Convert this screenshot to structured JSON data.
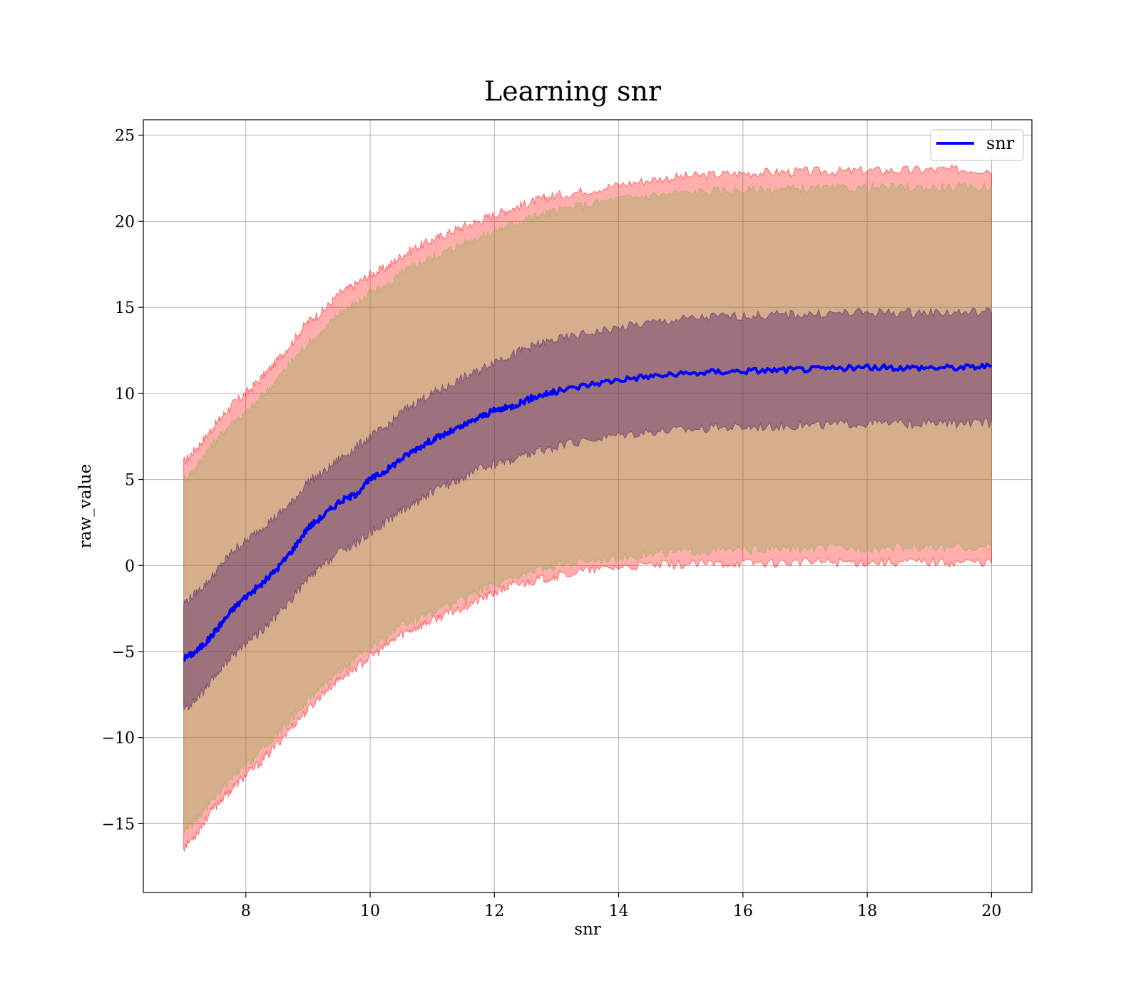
{
  "chart_data": {
    "type": "line",
    "title": "Learning snr",
    "xlabel": "snr",
    "ylabel": "raw_value",
    "xlim": [
      6.35,
      20.65
    ],
    "ylim": [
      -19.0,
      25.9
    ],
    "xticks": [
      8,
      10,
      12,
      14,
      16,
      18,
      20
    ],
    "yticks": [
      -15,
      -10,
      -5,
      0,
      5,
      10,
      15,
      20,
      25
    ],
    "grid": true,
    "legend": {
      "position": "top-right",
      "entries": [
        "snr"
      ]
    },
    "series": [
      {
        "name": "snr",
        "color": "#0000ff",
        "x": [
          7.0,
          7.2,
          7.4,
          7.6,
          7.8,
          8.0,
          8.25,
          8.5,
          8.75,
          9.0,
          9.25,
          9.5,
          9.75,
          10.0,
          10.25,
          10.5,
          10.75,
          11.0,
          11.25,
          11.5,
          11.75,
          12.0,
          12.25,
          12.5,
          12.75,
          13.0,
          13.5,
          14.0,
          14.5,
          15.0,
          15.5,
          16.0,
          16.5,
          17.0,
          17.5,
          18.0,
          18.5,
          19.0,
          19.5,
          20.0
        ],
        "y": [
          -5.4,
          -5.0,
          -4.3,
          -3.4,
          -2.5,
          -1.8,
          -1.1,
          -0.2,
          0.9,
          2.2,
          2.9,
          3.7,
          4.1,
          5.0,
          5.5,
          6.2,
          6.8,
          7.3,
          7.7,
          8.1,
          8.6,
          9.0,
          9.2,
          9.6,
          9.9,
          10.1,
          10.5,
          10.8,
          11.0,
          11.1,
          11.25,
          11.3,
          11.35,
          11.4,
          11.45,
          11.5,
          11.5,
          11.5,
          11.5,
          11.6
        ]
      }
    ],
    "bands": [
      {
        "color": "#ff0000",
        "opacity": 0.32,
        "lower": [
          -16.4,
          -15.6,
          -14.5,
          -13.6,
          -12.9,
          -12.2,
          -11.4,
          -10.4,
          -9.3,
          -8.4,
          -7.4,
          -6.6,
          -6.0,
          -5.3,
          -4.7,
          -4.0,
          -3.6,
          -3.2,
          -2.8,
          -2.4,
          -2.0,
          -1.6,
          -1.2,
          -1.0,
          -0.8,
          -0.6,
          -0.3,
          -0.1,
          0.0,
          0.05,
          0.1,
          0.15,
          0.15,
          0.2,
          0.2,
          0.2,
          0.2,
          0.2,
          0.2,
          0.2
        ],
        "upper": [
          6.0,
          6.8,
          7.7,
          8.6,
          9.4,
          10.0,
          10.9,
          11.9,
          13.0,
          14.2,
          14.8,
          15.8,
          16.3,
          16.9,
          17.3,
          18.0,
          18.5,
          18.9,
          19.3,
          19.7,
          20.0,
          20.4,
          20.7,
          21.0,
          21.3,
          21.5,
          21.8,
          22.1,
          22.4,
          22.6,
          22.7,
          22.8,
          22.85,
          22.9,
          22.9,
          22.95,
          22.95,
          23.0,
          23.0,
          23.0
        ]
      },
      {
        "color": "#8cb24d",
        "opacity": 0.35,
        "lower": [
          -15.4,
          -14.8,
          -13.9,
          -13.0,
          -12.3,
          -11.6,
          -10.8,
          -9.8,
          -8.8,
          -7.8,
          -6.9,
          -6.1,
          -5.5,
          -4.8,
          -4.2,
          -3.5,
          -3.1,
          -2.7,
          -2.3,
          -1.9,
          -1.5,
          -1.1,
          -0.7,
          -0.4,
          -0.2,
          0.0,
          0.3,
          0.5,
          0.65,
          0.8,
          0.85,
          0.9,
          0.95,
          1.0,
          1.0,
          1.0,
          1.05,
          1.05,
          1.05,
          1.05
        ],
        "upper": [
          5.0,
          5.7,
          6.8,
          7.6,
          8.4,
          8.8,
          9.8,
          10.8,
          11.9,
          12.9,
          13.6,
          14.7,
          15.2,
          15.8,
          16.2,
          17.0,
          17.5,
          17.9,
          18.3,
          18.7,
          19.1,
          19.4,
          19.8,
          20.1,
          20.4,
          20.6,
          21.0,
          21.3,
          21.5,
          21.65,
          21.75,
          21.8,
          21.85,
          21.9,
          21.9,
          21.95,
          21.95,
          21.95,
          21.95,
          22.0
        ]
      },
      {
        "color": "#4a1f6a",
        "opacity": 0.42,
        "lower": [
          -8.4,
          -7.8,
          -7.0,
          -6.0,
          -5.2,
          -4.5,
          -3.8,
          -2.9,
          -1.9,
          -0.8,
          0.0,
          0.8,
          1.2,
          1.9,
          2.5,
          3.2,
          3.7,
          4.3,
          4.7,
          5.1,
          5.6,
          5.9,
          6.1,
          6.4,
          6.7,
          6.9,
          7.3,
          7.6,
          7.8,
          7.9,
          8.0,
          8.05,
          8.1,
          8.15,
          8.2,
          8.25,
          8.25,
          8.25,
          8.25,
          8.3
        ],
        "upper": [
          -2.2,
          -1.6,
          -0.9,
          0.0,
          0.9,
          1.4,
          2.2,
          2.9,
          3.7,
          4.9,
          5.4,
          6.2,
          6.8,
          7.5,
          8.0,
          8.9,
          9.5,
          10.0,
          10.4,
          10.9,
          11.3,
          11.9,
          12.2,
          12.6,
          12.9,
          13.1,
          13.5,
          13.8,
          14.1,
          14.3,
          14.45,
          14.5,
          14.55,
          14.6,
          14.65,
          14.7,
          14.7,
          14.7,
          14.7,
          14.75
        ]
      }
    ]
  }
}
